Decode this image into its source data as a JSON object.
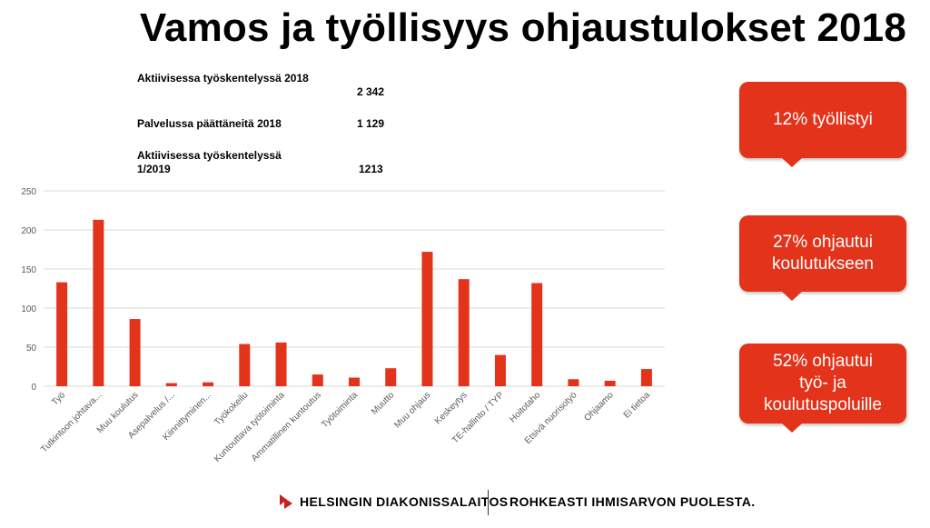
{
  "title": "Vamos ja työllisyys ohjaustulokset 2018",
  "stats": [
    {
      "label": "Aktiivisessa työskentelyssä 2018",
      "value": "2 342"
    },
    {
      "label": "Palvelussa päättäneitä 2018",
      "value": "1 129"
    },
    {
      "label": "Aktiivisessa työskentelyssä 1/2019",
      "value": "1213"
    }
  ],
  "callouts": [
    "12% työllistyi",
    "27% ohjautui koulutukseen",
    "52% ohjautui työ- ja koulutuspoluille"
  ],
  "footer": {
    "organization": "HELSINGIN DIAKONISSALAITOS",
    "slogan": "ROHKEASTI IHMISARVON PUOLESTA."
  },
  "colors": {
    "bar": "#e3331a",
    "callout": "#e3331a",
    "grid": "#d9d9d9",
    "axis_text": "#595959"
  },
  "chart_data": {
    "type": "bar",
    "categories": [
      "Työ",
      "Tutkintoon johtava...",
      "Muu koulutus",
      "Asepalvelus /...",
      "Kiinnittyminen...",
      "Työkokeilu",
      "Kuntouttava työtoiminta",
      "Ammatillinen kuntoutus",
      "Työtoiminta",
      "Muutto",
      "Muu ohjaus",
      "Keskeytys",
      "TE-hallinto / TYP",
      "Hoitotaho",
      "Etsivä nuorisotyö",
      "Ohjaamo",
      "Ei tietoa"
    ],
    "values": [
      133,
      213,
      86,
      4,
      5,
      54,
      56,
      15,
      11,
      23,
      172,
      137,
      40,
      132,
      9,
      7,
      22
    ],
    "ylim": [
      0,
      250
    ],
    "yticks": [
      0,
      50,
      100,
      150,
      200,
      250
    ],
    "grid": true,
    "legend": "none"
  }
}
